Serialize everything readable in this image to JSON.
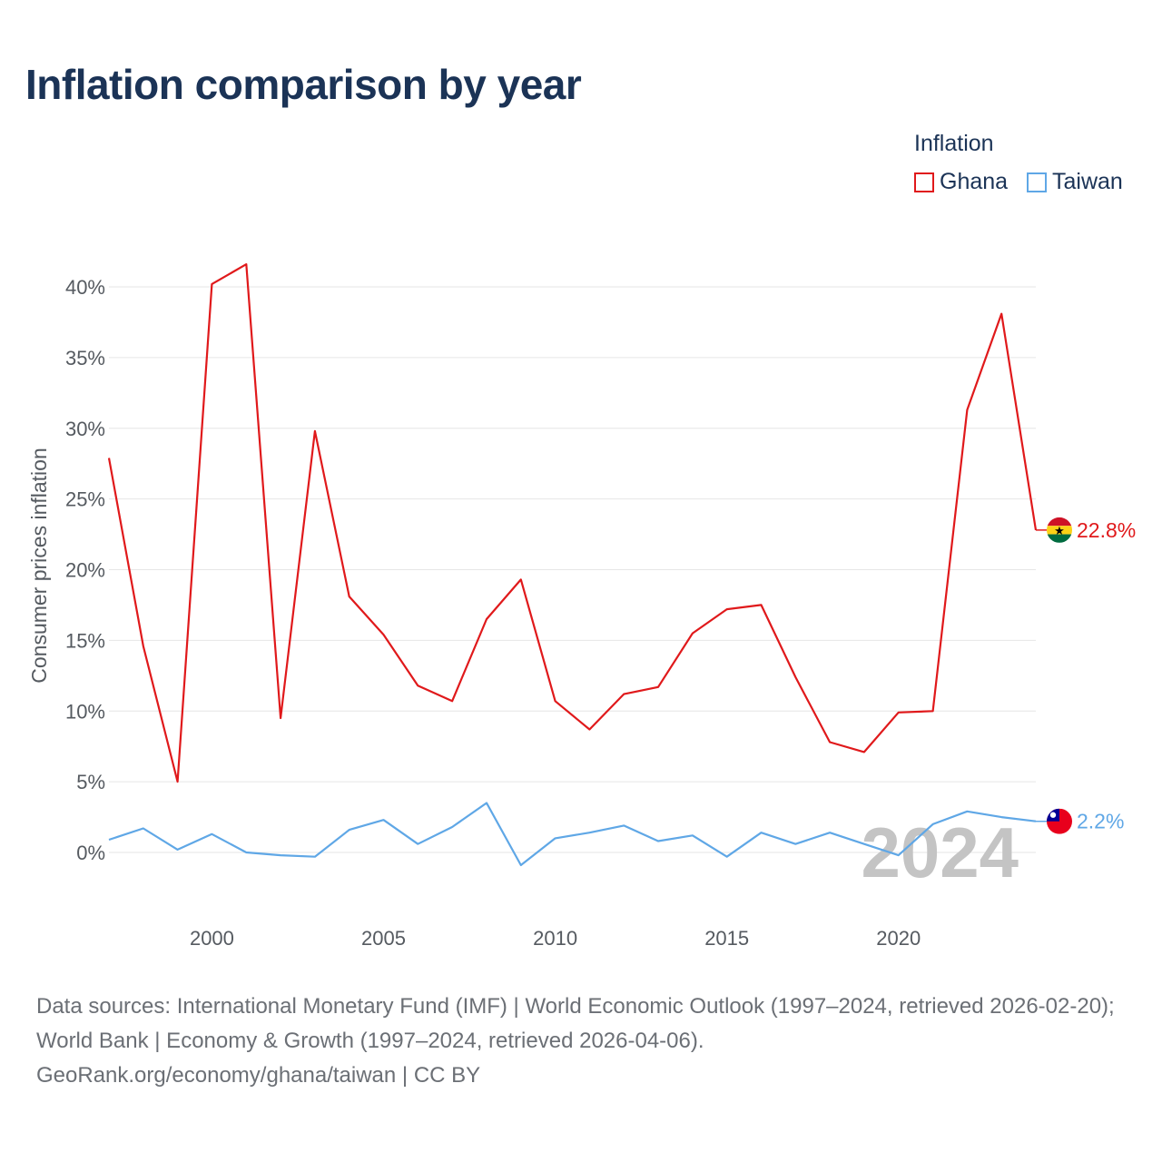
{
  "title": "Inflation comparison by year",
  "legend": {
    "title": "Inflation",
    "items": [
      {
        "label": "Ghana",
        "color": "#e0191b"
      },
      {
        "label": "Taiwan",
        "color": "#5fa7e6"
      }
    ]
  },
  "chart_data": {
    "type": "line",
    "title": "Inflation comparison by year",
    "xlabel": "",
    "ylabel": "Consumer prices inflation",
    "x": [
      1997,
      1998,
      1999,
      2000,
      2001,
      2002,
      2003,
      2004,
      2005,
      2006,
      2007,
      2008,
      2009,
      2010,
      2011,
      2012,
      2013,
      2014,
      2015,
      2016,
      2017,
      2018,
      2019,
      2020,
      2021,
      2022,
      2023,
      2024
    ],
    "xticks": [
      2000,
      2005,
      2010,
      2015,
      2020
    ],
    "xtick_labels": [
      "2000",
      "2005",
      "2010",
      "2015",
      "2020"
    ],
    "yticks": [
      0,
      5,
      10,
      15,
      20,
      25,
      30,
      35,
      40
    ],
    "ytick_labels": [
      "0%",
      "5%",
      "10%",
      "15%",
      "20%",
      "25%",
      "30%",
      "35%",
      "40%"
    ],
    "ylim": [
      -4,
      43
    ],
    "xlim": [
      1997,
      2024
    ],
    "grid": true,
    "series": [
      {
        "name": "Ghana",
        "color": "#e0191b",
        "values": [
          27.9,
          14.6,
          5.0,
          40.2,
          41.6,
          9.5,
          29.8,
          18.1,
          15.4,
          11.8,
          10.7,
          16.5,
          19.3,
          10.7,
          8.7,
          11.2,
          11.7,
          15.5,
          17.2,
          17.5,
          12.4,
          7.8,
          7.1,
          9.9,
          10.0,
          31.3,
          38.1,
          22.8
        ],
        "end_label": "22.8%",
        "flag": "ghana-flag"
      },
      {
        "name": "Taiwan",
        "color": "#5fa7e6",
        "values": [
          0.9,
          1.7,
          0.2,
          1.3,
          0.0,
          -0.2,
          -0.3,
          1.6,
          2.3,
          0.6,
          1.8,
          3.5,
          -0.9,
          1.0,
          1.4,
          1.9,
          0.8,
          1.2,
          -0.3,
          1.4,
          0.6,
          1.4,
          0.6,
          -0.2,
          2.0,
          2.9,
          2.5,
          2.2
        ],
        "end_label": "2.2%",
        "flag": "taiwan-flag"
      }
    ],
    "current_year_label": "2024"
  },
  "footer": {
    "sources": "Data sources: International Monetary Fund (IMF) | World Economic Outlook (1997–2024, retrieved 2026-02-20); World Bank | Economy & Growth (1997–2024, retrieved 2026-04-06).",
    "credit": "GeoRank.org/economy/ghana/taiwan | CC BY"
  }
}
